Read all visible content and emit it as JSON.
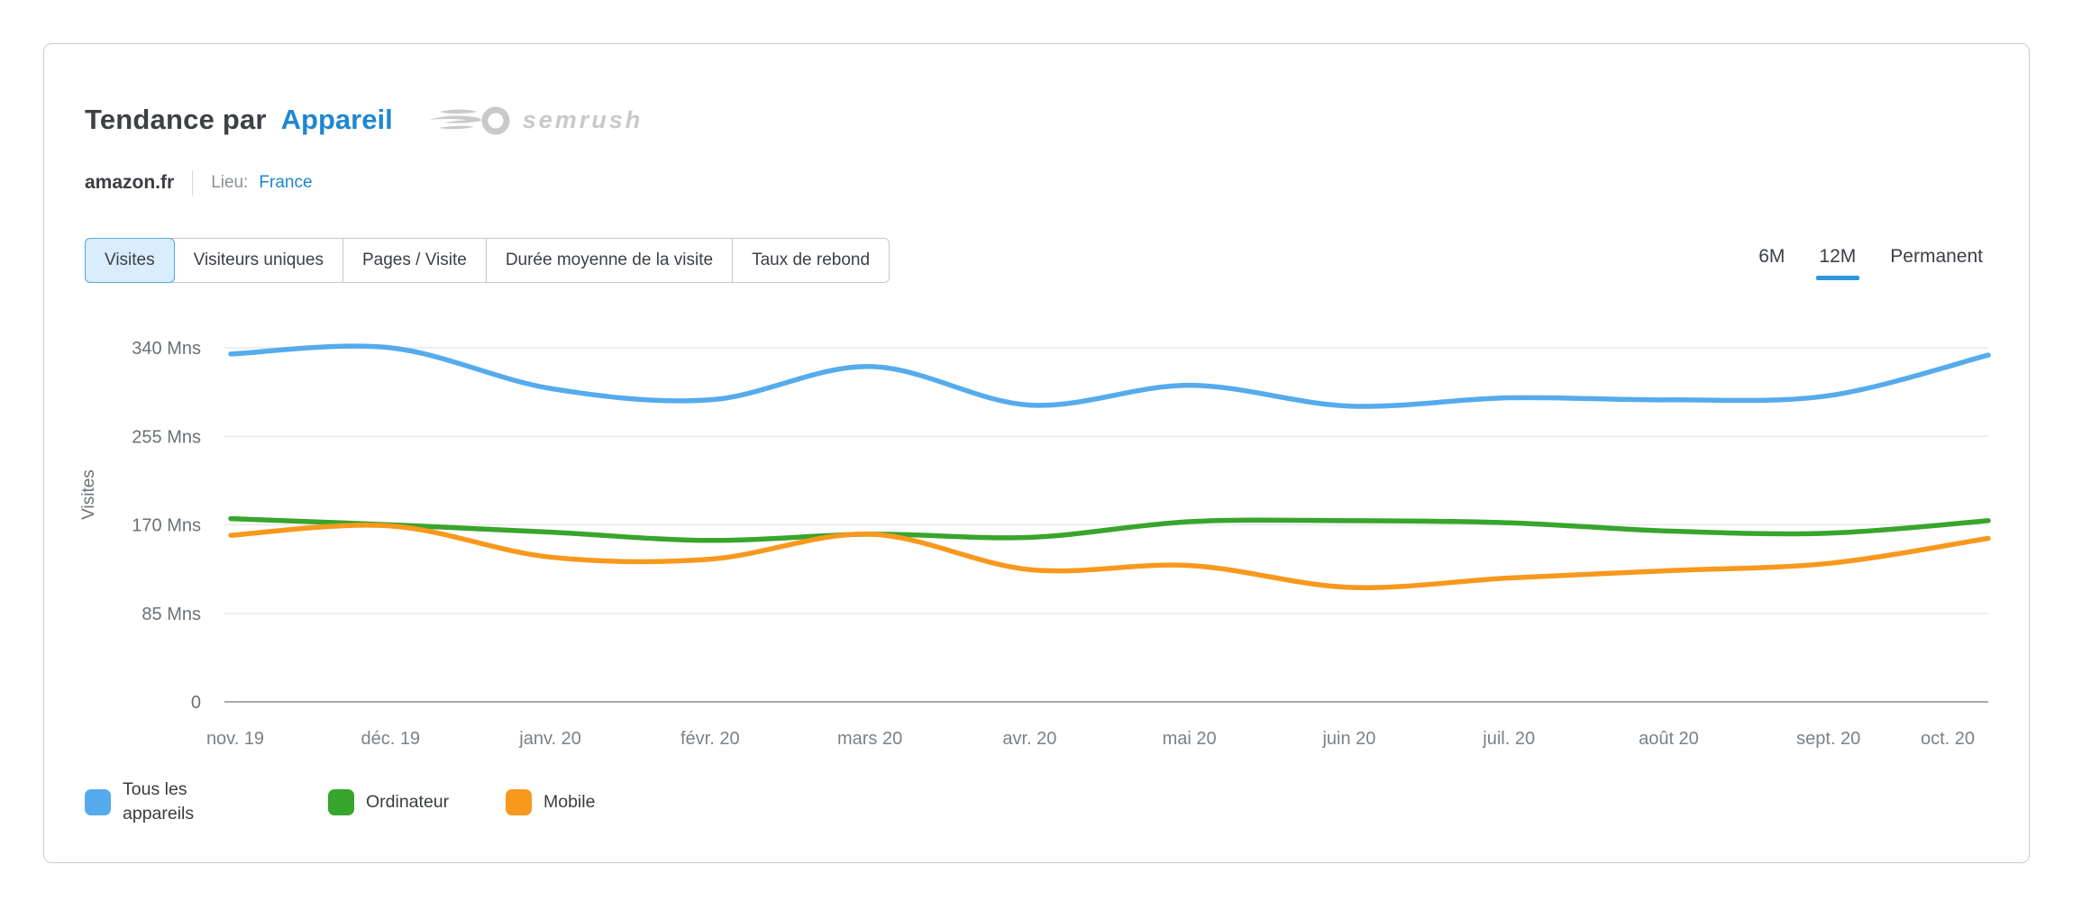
{
  "header": {
    "title_prefix": "Tendance par",
    "title_highlight": "Appareil",
    "logo_text": "semrush"
  },
  "subheader": {
    "domain": "amazon.fr",
    "location_label": "Lieu:",
    "location_value": "France"
  },
  "metric_tabs": [
    {
      "label": "Visites",
      "active": true
    },
    {
      "label": "Visiteurs uniques",
      "active": false
    },
    {
      "label": "Pages / Visite",
      "active": false
    },
    {
      "label": "Durée moyenne de la visite",
      "active": false
    },
    {
      "label": "Taux de rebond",
      "active": false
    }
  ],
  "period_tabs": [
    {
      "label": "6M",
      "active": false
    },
    {
      "label": "12M",
      "active": true
    },
    {
      "label": "Permanent",
      "active": false
    }
  ],
  "colors": {
    "all_devices": "#55abec",
    "desktop": "#38a52c",
    "mobile": "#f8981d",
    "link_blue": "#1f87cf",
    "active_tab_bg": "#d9edfc",
    "active_tab_border": "#5ca7e2",
    "period_underline": "#2e97e0",
    "gridline": "#e7e9ea",
    "zero_axis": "#a7adb2",
    "axis_text": "#6b7175",
    "tick_text": "#7b8186"
  },
  "chart_data": {
    "type": "line",
    "title": "Tendance par Appareil",
    "xlabel": "",
    "ylabel": "Visites",
    "grid": true,
    "legend_position": "bottom",
    "ylim": [
      0,
      340
    ],
    "y_unit": "Mns",
    "y_ticks": [
      {
        "label": "340 Mns",
        "value": 340
      },
      {
        "label": "255 Mns",
        "value": 255
      },
      {
        "label": "170 Mns",
        "value": 170
      },
      {
        "label": "85 Mns",
        "value": 85
      },
      {
        "label": "0",
        "value": 0
      }
    ],
    "categories": [
      "nov. 19",
      "déc. 19",
      "janv. 20",
      "févr. 20",
      "mars 20",
      "avr. 20",
      "mai 20",
      "juin 20",
      "juil. 20",
      "août 20",
      "sept. 20",
      "oct. 20"
    ],
    "series": [
      {
        "name": "Tous les appareils",
        "color": "#55abec",
        "values": [
          334,
          340,
          301,
          290,
          322,
          285,
          304,
          284,
          292,
          290,
          294,
          333
        ]
      },
      {
        "name": "Ordinateur",
        "color": "#38a52c",
        "values": [
          176,
          170,
          163,
          155,
          161,
          158,
          173,
          174,
          172,
          164,
          162,
          174
        ]
      },
      {
        "name": "Mobile",
        "color": "#f8981d",
        "values": [
          160,
          169,
          139,
          137,
          161,
          127,
          131,
          110,
          119,
          126,
          133,
          157
        ]
      }
    ]
  },
  "legend": [
    {
      "label": "Tous les appareils",
      "color": "#55abec"
    },
    {
      "label": "Ordinateur",
      "color": "#38a52c"
    },
    {
      "label": "Mobile",
      "color": "#f8981d"
    }
  ]
}
